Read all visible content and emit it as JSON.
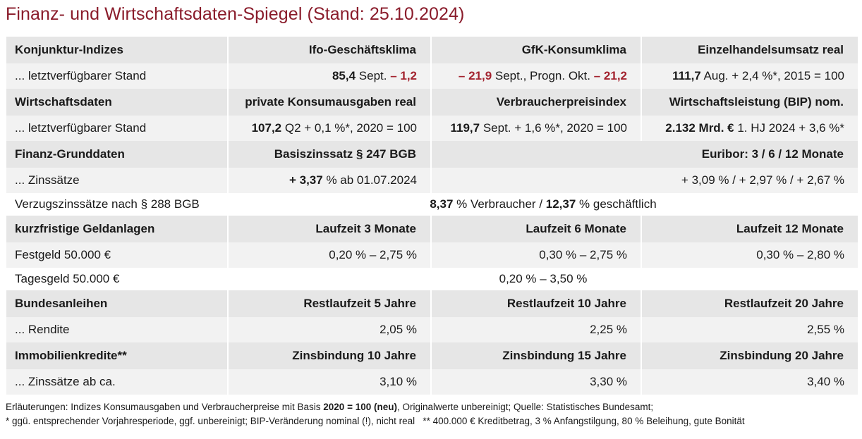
{
  "title": "Finanz- und Wirtschaftsdaten-Spiegel (Stand: 25.10.2024)",
  "konjunktur": {
    "label": "Konjunktur-Indizes",
    "col1": "Ifo-Geschäftsklima",
    "col2": "GfK-Konsumklima",
    "col3": "Einzelhandelsumsatz real",
    "row_label": "... letztverfügbarer Stand",
    "ifo_value": "85,4",
    "ifo_text": " Sept. ",
    "ifo_change": "– 1,2",
    "gfk_value": "– 21,9",
    "gfk_text": " Sept., Progn. Okt. ",
    "gfk_forecast": "– 21,2",
    "ehu_value": "111,7",
    "ehu_text": " Aug. + 2,4 %*, 2015 = 100"
  },
  "wirtschaft": {
    "label": "Wirtschaftsdaten",
    "col1": "private Konsumausgaben real",
    "col2": "Verbraucherpreisindex",
    "col3": "Wirtschaftsleistung (BIP) nom.",
    "row_label": "... letztverfügbarer Stand",
    "konsum_value": "107,2",
    "konsum_text": " Q2 + 0,1 %*, 2020 = 100",
    "vpi_value": "119,7",
    "vpi_text": " Sept. + 1,6 %*, 2020 = 100",
    "bip_value": "2.132 Mrd. €",
    "bip_text": " 1. HJ 2024 + 3,6 %*"
  },
  "finanz": {
    "label": "Finanz-Grunddaten",
    "col1": "Basiszinssatz § 247 BGB",
    "col2": "Euribor: 3 / 6 / 12 Monate",
    "row_label": "... Zinssätze",
    "basis_value": "+ 3,37",
    "basis_text": " % ab 01.07.2024",
    "euribor_value": "+ 3,09 % / + 2,97 % / + 2,67 %",
    "verzug_label": "Verzugszinssätze nach § 288 BGB",
    "verzug_v1": "8,37",
    "verzug_t1": " % Verbraucher / ",
    "verzug_v2": "12,37",
    "verzug_t2": " % geschäftlich"
  },
  "geldanlagen": {
    "label": "kurzfristige Geldanlagen",
    "col1": "Laufzeit 3 Monate",
    "col2": "Laufzeit 6 Monate",
    "col3": "Laufzeit 12 Monate",
    "festgeld_label": "Festgeld 50.000 €",
    "festgeld_3": "0,20 % – 2,75 %",
    "festgeld_6": "0,30 % – 2,75 %",
    "festgeld_12": "0,30 % – 2,80 %",
    "tagesgeld_label": "Tagesgeld 50.000 €",
    "tagesgeld_value": "0,20 % – 3,50 %"
  },
  "bund": {
    "label": "Bundesanleihen",
    "col1": "Restlaufzeit 5 Jahre",
    "col2": "Restlaufzeit 10 Jahre",
    "col3": "Restlaufzeit 20 Jahre",
    "row_label": "... Rendite",
    "v1": "2,05 %",
    "v2": "2,25 %",
    "v3": "2,55 %"
  },
  "immo": {
    "label": "Immobilienkredite**",
    "col1": "Zinsbindung 10 Jahre",
    "col2": "Zinsbindung 15 Jahre",
    "col3": "Zinsbindung 20 Jahre",
    "row_label": "... Zinssätze ab ca.",
    "v1": "3,10 %",
    "v2": "3,30 %",
    "v3": "3,40 %"
  },
  "notes": {
    "line1_a": "Erläuterungen: Indizes Konsumausgaben und Verbraucherpreise mit Basis ",
    "line1_b": "2020 = 100 (neu)",
    "line1_c": ", Originalwerte unbereinigt; Quelle: Statistisches Bundesamt;",
    "line2": "* ggü. entsprechender Vorjahresperiode, ggf. unbereinigt; BIP-Veränderung nominal (!), nicht real   ** 400.000 € Kreditbetrag, 3 % Anfangstilgung, 80 % Beleihung, gute Bonität"
  }
}
